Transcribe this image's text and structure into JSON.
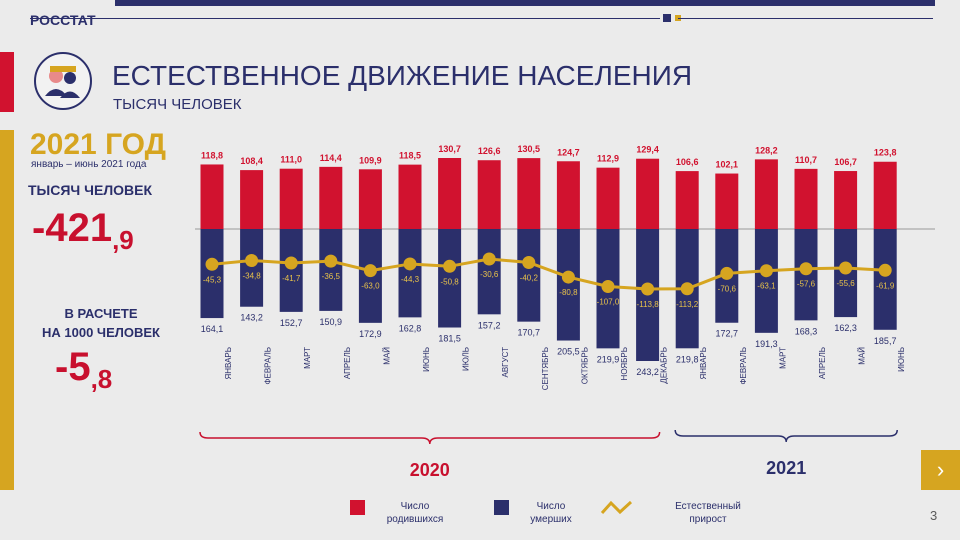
{
  "header": {
    "brand": "РОССТАТ"
  },
  "title": "ЕСТЕСТВЕННОЕ ДВИЖЕНИЕ НАСЕЛЕНИЯ",
  "subtitle": "ТЫСЯЧ ЧЕЛОВЕК",
  "summary": {
    "year_heading": "2021 ГОД",
    "period": "январь – июнь 2021 года",
    "unit_label": "ТЫСЯЧ ЧЕЛОВЕК",
    "total_int": "-421",
    "total_dec": ",9",
    "per_label_line1": "В РАСЧЕТЕ",
    "per_label_line2": "НА 1000 ЧЕЛОВЕК",
    "rate_int": "-5",
    "rate_dec": ",8"
  },
  "legend": {
    "births_line1": "Число",
    "births_line2": "родившихся",
    "deaths_line1": "Число",
    "deaths_line2": "умерших",
    "natural_line1": "Естественный",
    "natural_line2": "прирост"
  },
  "page_number": "3",
  "nav_icon": "chevron-right-icon",
  "colors": {
    "births": "#d1122f",
    "deaths": "#2b2f6b",
    "natural": "#d6a520",
    "accent_text": "#c8102e"
  },
  "chart_data": {
    "type": "bar",
    "categories": [
      "ЯНВАРЬ",
      "ФЕВРАЛЬ",
      "МАРТ",
      "АПРЕЛЬ",
      "МАЙ",
      "ИЮНЬ",
      "ИЮЛЬ",
      "АВГУСТ",
      "СЕНТЯБРЬ",
      "ОКТЯБРЬ",
      "НОЯБРЬ",
      "ДЕКАБРЬ",
      "ЯНВАРЬ",
      "ФЕВРАЛЬ",
      "МАРТ",
      "АПРЕЛЬ",
      "МАЙ",
      "ИЮНЬ"
    ],
    "groups": [
      {
        "label": "2020",
        "from": 0,
        "to": 11
      },
      {
        "label": "2021",
        "from": 12,
        "to": 17
      }
    ],
    "series": [
      {
        "name": "Число родившихся",
        "values": [
          118.8,
          108.4,
          111.0,
          114.4,
          109.9,
          118.5,
          130.7,
          126.6,
          130.5,
          124.7,
          112.9,
          129.4,
          106.6,
          102.1,
          128.2,
          110.7,
          106.7,
          123.8
        ],
        "labels": [
          "118,8",
          "108,4",
          "111,0",
          "114,4",
          "109,9",
          "118,5",
          "130,7",
          "126,6",
          "130,5",
          "124,7",
          "112,9",
          "129,4",
          "106,6",
          "102,1",
          "128,2",
          "110,7",
          "106,7",
          "123,8"
        ]
      },
      {
        "name": "Число умерших",
        "values": [
          164.1,
          143.2,
          152.7,
          150.9,
          172.9,
          162.8,
          181.5,
          157.2,
          170.7,
          205.5,
          219.9,
          243.2,
          219.8,
          172.7,
          191.3,
          168.3,
          162.3,
          185.7
        ],
        "labels": [
          "164,1",
          "143,2",
          "152,7",
          "150,9",
          "172,9",
          "162,8",
          "181,5",
          "157,2",
          "170,7",
          "205,5",
          "219,9",
          "243,2",
          "219,8",
          "172,7",
          "191,3",
          "168,3",
          "162,3",
          "185,7"
        ]
      },
      {
        "name": "Естественный прирост",
        "values": [
          -45.3,
          -34.8,
          -41.7,
          -36.5,
          -63.0,
          -44.3,
          -50.8,
          -30.6,
          -40.2,
          -80.8,
          -107.0,
          -113.8,
          -113.2,
          -70.6,
          -63.1,
          -57.6,
          -55.6,
          -61.9
        ],
        "labels": [
          "-45,3",
          "-34,8",
          "-41,7",
          "-36,5",
          "-63,0",
          "-44,3",
          "-50,8",
          "-30,6",
          "-40,2",
          "-80,8",
          "-107,0",
          "-113,8",
          "-113,2",
          "-70,6",
          "-63,1",
          "-57,6",
          "-55,6",
          "-61,9"
        ]
      }
    ]
  }
}
